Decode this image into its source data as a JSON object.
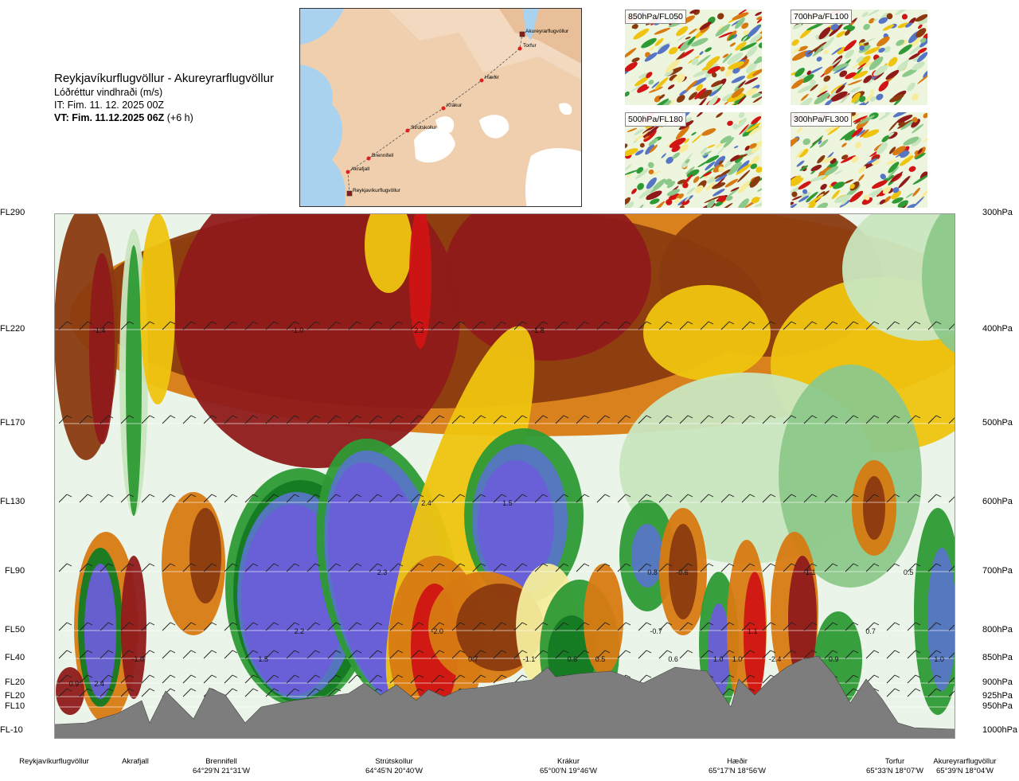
{
  "header": {
    "route_title": "Reykjavíkurflugvöllur - Akureyrarflugvöllur",
    "parameter": "Lóðréttur vindhraði (m/s)",
    "issue_time": "IT: Fim. 11. 12. 2025 00Z",
    "valid_time": "VT: Fim. 11.12.2025 06Z",
    "valid_offset": "(+6 h)"
  },
  "route_map": {
    "points": [
      {
        "name": "Akureyrarflugvöllur"
      },
      {
        "name": "Torfur"
      },
      {
        "name": "Hæðir"
      },
      {
        "name": "Krákur"
      },
      {
        "name": "Strútskollur"
      },
      {
        "name": "Brennifell"
      },
      {
        "name": "Akrafjall"
      },
      {
        "name": "Reykjavíkurflugvöllur"
      }
    ]
  },
  "thumbnails": [
    {
      "label": "850hPa/FL050"
    },
    {
      "label": "700hPa/FL100"
    },
    {
      "label": "500hPa/FL180"
    },
    {
      "label": "300hPa/FL300"
    }
  ],
  "chart_data": {
    "type": "heatmap",
    "title": "Lóðréttur vindhraði (m/s)",
    "y_left_ticks": [
      "FL290",
      "FL220",
      "FL170",
      "FL130",
      "FL90",
      "FL50",
      "FL40",
      "FL20",
      "FL20",
      "FL10",
      "FL-10"
    ],
    "y_right_ticks": [
      "300hPa",
      "400hPa",
      "500hPa",
      "600hPa",
      "700hPa",
      "800hPa",
      "850hPa",
      "900hPa",
      "925hPa",
      "950hPa",
      "1000hPa"
    ],
    "pressure_levels_hpa": [
      300,
      400,
      500,
      600,
      700,
      800,
      850,
      900,
      925,
      950,
      1000
    ],
    "waypoints": [
      {
        "name": "Reykjavíkurflugvöllur",
        "coord": ""
      },
      {
        "name": "Akrafjall",
        "coord": ""
      },
      {
        "name": "Brennifell",
        "coord": "64°29'N 21°31'W"
      },
      {
        "name": "Strútskollur",
        "coord": "64°45'N 20°40'W"
      },
      {
        "name": "Krákur",
        "coord": "65°00'N 19°46'W"
      },
      {
        "name": "Hæðir",
        "coord": "65°17'N 18°56'W"
      },
      {
        "name": "Torfur",
        "coord": "65°33'N 18°07'W"
      },
      {
        "name": "Akureyrarflugvöllur",
        "coord": "65°39'N 18°04'W"
      }
    ],
    "value_labels": [
      {
        "text": "-1.4",
        "route_frac": 0.05,
        "p_hpa": 400
      },
      {
        "text": "-1.0",
        "route_frac": 0.27,
        "p_hpa": 400
      },
      {
        "text": "2.2",
        "route_frac": 0.405,
        "p_hpa": 400
      },
      {
        "text": "-1.8",
        "route_frac": 0.537,
        "p_hpa": 400
      },
      {
        "text": "2.4",
        "route_frac": 0.413,
        "p_hpa": 600
      },
      {
        "text": "1.5",
        "route_frac": 0.503,
        "p_hpa": 600
      },
      {
        "text": "2.3",
        "route_frac": 0.364,
        "p_hpa": 700
      },
      {
        "text": "0.8",
        "route_frac": 0.664,
        "p_hpa": 700
      },
      {
        "text": "-0.6",
        "route_frac": 0.697,
        "p_hpa": 700
      },
      {
        "text": "-1.1",
        "route_frac": 0.838,
        "p_hpa": 700
      },
      {
        "text": "0.5",
        "route_frac": 0.948,
        "p_hpa": 700
      },
      {
        "text": "2.2",
        "route_frac": 0.272,
        "p_hpa": 800
      },
      {
        "text": "-2.0",
        "route_frac": 0.425,
        "p_hpa": 800
      },
      {
        "text": "-0.7",
        "route_frac": 0.668,
        "p_hpa": 800
      },
      {
        "text": "1.1",
        "route_frac": 0.775,
        "p_hpa": 800
      },
      {
        "text": "0.7",
        "route_frac": 0.906,
        "p_hpa": 800
      },
      {
        "text": "-1.0",
        "route_frac": 0.093,
        "p_hpa": 850
      },
      {
        "text": "1.5",
        "route_frac": 0.232,
        "p_hpa": 850
      },
      {
        "text": "0.7",
        "route_frac": 0.465,
        "p_hpa": 850
      },
      {
        "text": "-1.1",
        "route_frac": 0.527,
        "p_hpa": 850
      },
      {
        "text": "0.6",
        "route_frac": 0.575,
        "p_hpa": 850
      },
      {
        "text": "0.5",
        "route_frac": 0.606,
        "p_hpa": 850
      },
      {
        "text": "0.6",
        "route_frac": 0.687,
        "p_hpa": 850
      },
      {
        "text": "1.0",
        "route_frac": 0.737,
        "p_hpa": 850
      },
      {
        "text": "1.0",
        "route_frac": 0.758,
        "p_hpa": 850
      },
      {
        "text": "-2.4",
        "route_frac": 0.8,
        "p_hpa": 850
      },
      {
        "text": "0.9",
        "route_frac": 0.865,
        "p_hpa": 850
      },
      {
        "text": "1.0",
        "route_frac": 0.982,
        "p_hpa": 850
      },
      {
        "text": "0.9",
        "route_frac": 0.022,
        "p_hpa": 900
      },
      {
        "text": "2.4",
        "route_frac": 0.05,
        "p_hpa": 900
      }
    ],
    "colors": {
      "strong_down": "#8f1a1a",
      "mod_down": "#8b3a10",
      "weak_down": "#d77a12",
      "light_down": "#efc410",
      "faint_down": "#f6ec9c",
      "neutral": "#eaf4e8",
      "faint_up": "#c9e6c0",
      "light_up": "#8cc88a",
      "mod_up": "#2e9a35",
      "strong_up": "#137a22",
      "very_strong_up": "#5676c5",
      "extreme_up": "#6a5ed8",
      "extreme_down": "#d11414",
      "terrain": "#7d7d7d"
    }
  }
}
